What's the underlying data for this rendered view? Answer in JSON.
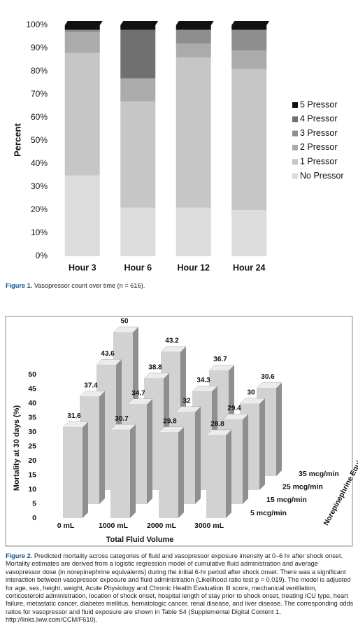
{
  "chart_data": [
    {
      "type": "bar",
      "stacked": true,
      "categories": [
        "Hour 3",
        "Hour 6",
        "Hour 12",
        "Hour 24"
      ],
      "series": [
        {
          "name": "No Pressor",
          "color": "#dcdcdc",
          "values": [
            35,
            21,
            21,
            20
          ]
        },
        {
          "name": "1 Pressor",
          "color": "#c6c6c6",
          "values": [
            53,
            46,
            65,
            61
          ]
        },
        {
          "name": "2 Pressor",
          "color": "#ababab",
          "values": [
            9,
            10,
            6,
            8
          ]
        },
        {
          "name": "3 Pressor",
          "color": "#8e8e8e",
          "values": [
            1,
            0,
            6,
            9
          ]
        },
        {
          "name": "4 Pressor",
          "color": "#707070",
          "values": [
            0,
            21,
            0,
            0
          ]
        },
        {
          "name": "5 Pressor",
          "color": "#111111",
          "values": [
            2,
            2,
            2,
            2
          ]
        }
      ],
      "ylim": [
        0,
        100
      ],
      "yticks": [
        {
          "value": 0,
          "label": "0%"
        },
        {
          "value": 10,
          "label": "10%"
        },
        {
          "value": 20,
          "label": "20%"
        },
        {
          "value": 30,
          "label": "30%"
        },
        {
          "value": 40,
          "label": "40%"
        },
        {
          "value": 50,
          "label": "50%"
        },
        {
          "value": 60,
          "label": "60%"
        },
        {
          "value": 70,
          "label": "70%"
        },
        {
          "value": 80,
          "label": "80%"
        },
        {
          "value": 90,
          "label": "90%"
        },
        {
          "value": 100,
          "label": "100%"
        }
      ],
      "ylabel": "Percent",
      "legend": "right",
      "grid": false
    },
    {
      "type": "bar3d",
      "color": "#d2d2d2",
      "categories": [
        "0 mL",
        "1000 mL",
        "2000 mL",
        "3000 mL"
      ],
      "series": [
        {
          "name": "5 mcg/min",
          "values": [
            31.6,
            30.7,
            29.8,
            28.8
          ]
        },
        {
          "name": "15 mcg/min",
          "values": [
            37.4,
            34.7,
            32,
            29.4
          ]
        },
        {
          "name": "25 mcg/min",
          "values": [
            43.6,
            38.8,
            34.3,
            30
          ]
        },
        {
          "name": "35 mcg/min",
          "values": [
            50,
            43.2,
            36.7,
            30.6
          ]
        }
      ],
      "ylim": [
        0,
        50
      ],
      "yticks": [
        0,
        5,
        10,
        15,
        20,
        25,
        30,
        35,
        40,
        45,
        50
      ],
      "ylabel": "Mortality at 30 days (%)",
      "xlabel": "Total Fluid Volume",
      "zlabel": "Norepinephrine Equivalents"
    }
  ],
  "captions": [
    {
      "label": "Figure 1.",
      "text": "Vasopressor count over time (n = 616)."
    },
    {
      "label": "Figure 2.",
      "text": "Predicted mortality across categories of fluid and vasopressor exposure intensity at 0–6 hr after shock onset. Mortality estimates are derived from a logistic regression model of cumulative fluid administration and average vasopressor dose (in norepinephrine equivalents) during the initial 6-hr period after shock onset. There was a significant interaction between vasopressor exposure and fluid administration (Likelihood ratio test p = 0.019). The model is adjusted for age, sex, height, weight, Acute Physiology and Chronic Health Evaluation III score, mechanical ventilation, corticosteroid administration, location of shock onset, hospital length of stay prior to shock onset, treating ICU type, heart failure, metastatic cancer, diabetes mellitus, hematologic cancer, renal disease, and liver disease. The corresponding odds ratios for vasopressor and fluid exposure are shown in Table S4 (Supplemental Digital Content 1, http://links.lww.com/CCM/F610)."
    }
  ]
}
